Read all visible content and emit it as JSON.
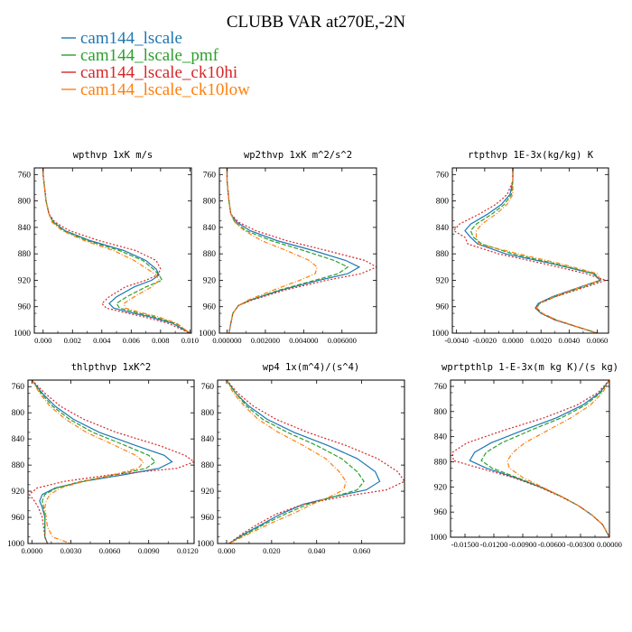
{
  "title": "CLUBB VAR at270E,-2N",
  "legend": [
    {
      "label": "cam144_lscale",
      "color": "#1f77b4"
    },
    {
      "label": "cam144_lscale_pmf",
      "color": "#2ca02c"
    },
    {
      "label": "cam144_lscale_ck10hi",
      "color": "#d62728"
    },
    {
      "label": "cam144_lscale_ck10low",
      "color": "#ff7f0e"
    }
  ],
  "chart_data": [
    {
      "type": "line",
      "title": "wpthvp  1xK m/s",
      "ylim": [
        1000,
        750
      ],
      "yticks": [
        760,
        800,
        840,
        880,
        920,
        960,
        1000
      ],
      "xlim": [
        -0.0006,
        0.0101
      ],
      "xticks": [
        0.0,
        0.002,
        0.004,
        0.006,
        0.008,
        0.01
      ],
      "xtick_labels": [
        "0.000",
        "0.002",
        "0.004",
        "0.006",
        "0.008",
        "0.010"
      ],
      "y": [
        750,
        760,
        780,
        800,
        820,
        832,
        845,
        860,
        875,
        890,
        903,
        912,
        920,
        930,
        945,
        955,
        962,
        968,
        975,
        985,
        1000
      ],
      "series": [
        {
          "name": "cam144_lscale",
          "values": [
            0.0,
            0.0,
            0.0001,
            0.0002,
            0.0004,
            0.0007,
            0.0015,
            0.0032,
            0.0055,
            0.007,
            0.0077,
            0.0079,
            0.0074,
            0.0062,
            0.005,
            0.0045,
            0.0048,
            0.0058,
            0.0072,
            0.0088,
            0.01
          ]
        },
        {
          "name": "cam144_lscale_pmf",
          "values": [
            0.0,
            0.0,
            0.0001,
            0.0002,
            0.0004,
            0.0007,
            0.0014,
            0.003,
            0.0052,
            0.0068,
            0.0075,
            0.0079,
            0.0081,
            0.007,
            0.0057,
            0.005,
            0.0052,
            0.0062,
            0.0075,
            0.009,
            0.01
          ]
        },
        {
          "name": "cam144_lscale_ck10hi",
          "values": [
            0.0,
            0.0,
            0.0001,
            0.0002,
            0.0004,
            0.0008,
            0.0018,
            0.0038,
            0.0063,
            0.0077,
            0.008,
            0.0078,
            0.007,
            0.0056,
            0.0045,
            0.004,
            0.0043,
            0.0054,
            0.0068,
            0.0085,
            0.01
          ]
        },
        {
          "name": "cam144_lscale_ck10low",
          "values": [
            0.0,
            0.0,
            0.0001,
            0.0002,
            0.0004,
            0.0006,
            0.0013,
            0.0028,
            0.0048,
            0.0062,
            0.0071,
            0.0077,
            0.0079,
            0.0074,
            0.0062,
            0.0055,
            0.0056,
            0.0065,
            0.0078,
            0.0091,
            0.01
          ]
        }
      ]
    },
    {
      "type": "line",
      "title": "wp2thvp  1xK m^2/s^2",
      "ylim": [
        1000,
        750
      ],
      "yticks": [
        760,
        800,
        840,
        880,
        920,
        960,
        1000
      ],
      "xlim": [
        -0.0004,
        0.0078
      ],
      "xticks": [
        0.0,
        0.002,
        0.004,
        0.006
      ],
      "xtick_labels": [
        "0.000000",
        "0.002000",
        "0.004000",
        "0.006000"
      ],
      "y": [
        750,
        770,
        800,
        820,
        832,
        845,
        860,
        875,
        890,
        900,
        910,
        920,
        935,
        950,
        958,
        970,
        985,
        1000
      ],
      "series": [
        {
          "name": "cam144_lscale",
          "values": [
            0.0,
            0.0,
            0.0001,
            0.0002,
            0.0005,
            0.0012,
            0.0026,
            0.0045,
            0.0062,
            0.0069,
            0.0063,
            0.0048,
            0.0028,
            0.0012,
            0.0006,
            0.0003,
            0.0002,
            0.0001
          ]
        },
        {
          "name": "cam144_lscale_pmf",
          "values": [
            0.0,
            0.0,
            0.0001,
            0.0002,
            0.0004,
            0.001,
            0.0023,
            0.004,
            0.0056,
            0.0063,
            0.0058,
            0.0046,
            0.0027,
            0.0012,
            0.0006,
            0.0003,
            0.0002,
            0.0001
          ]
        },
        {
          "name": "cam144_lscale_ck10hi",
          "values": [
            0.0,
            0.0,
            0.0001,
            0.0002,
            0.0006,
            0.0015,
            0.0031,
            0.0052,
            0.0072,
            0.0078,
            0.007,
            0.0052,
            0.003,
            0.0013,
            0.0006,
            0.0003,
            0.0002,
            0.0001
          ]
        },
        {
          "name": "cam144_lscale_ck10low",
          "values": [
            0.0,
            0.0,
            0.0001,
            0.0002,
            0.0004,
            0.0009,
            0.0018,
            0.0031,
            0.0043,
            0.0047,
            0.0046,
            0.0038,
            0.0024,
            0.0011,
            0.0006,
            0.0003,
            0.0002,
            0.0001
          ]
        }
      ]
    },
    {
      "type": "line",
      "title": "rtpthvp  1E-3x(kg/kg) K",
      "ylim": [
        1000,
        750
      ],
      "yticks": [
        760,
        800,
        840,
        880,
        920,
        960,
        1000
      ],
      "xlim": [
        -0.0043,
        0.0068
      ],
      "xticks": [
        -0.004,
        -0.002,
        0.0,
        0.002,
        0.004,
        0.006
      ],
      "xtick_labels": [
        "-0.0040",
        "-0.0020",
        "0.0000",
        "0.0020",
        "0.0040",
        "0.0060"
      ],
      "y": [
        750,
        770,
        790,
        805,
        820,
        835,
        845,
        855,
        865,
        880,
        895,
        910,
        920,
        930,
        945,
        955,
        962,
        970,
        980,
        1000
      ],
      "series": [
        {
          "name": "cam144_lscale",
          "values": [
            0.0,
            0.0,
            -0.0002,
            -0.0008,
            -0.0018,
            -0.003,
            -0.0034,
            -0.003,
            -0.0025,
            -0.0005,
            0.0028,
            0.0057,
            0.0062,
            0.0048,
            0.0028,
            0.0018,
            0.0016,
            0.002,
            0.003,
            0.006
          ]
        },
        {
          "name": "cam144_lscale_pmf",
          "values": [
            0.0,
            0.0,
            -0.0001,
            -0.0006,
            -0.0015,
            -0.0026,
            -0.003,
            -0.0028,
            -0.0022,
            0.0,
            0.003,
            0.0058,
            0.0063,
            0.005,
            0.003,
            0.0019,
            0.0017,
            0.0021,
            0.0031,
            0.006
          ]
        },
        {
          "name": "cam144_lscale_ck10hi",
          "values": [
            0.0,
            0.0,
            -0.0004,
            -0.0012,
            -0.0024,
            -0.0038,
            -0.0042,
            -0.0034,
            -0.0032,
            -0.001,
            0.0022,
            0.0052,
            0.0066,
            0.0052,
            0.003,
            0.0019,
            0.0016,
            0.002,
            0.003,
            0.006
          ]
        },
        {
          "name": "cam144_lscale_ck10low",
          "values": [
            0.0,
            0.0,
            0.0,
            -0.0004,
            -0.0012,
            -0.0022,
            -0.0026,
            -0.0026,
            -0.0024,
            0.0004,
            0.0034,
            0.006,
            0.0062,
            0.0048,
            0.0029,
            0.0019,
            0.0017,
            0.0021,
            0.0031,
            0.006
          ]
        }
      ]
    },
    {
      "type": "line",
      "title": "thlpthvp  1xK^2",
      "ylim": [
        1000,
        750
      ],
      "yticks": [
        760,
        800,
        840,
        880,
        920,
        960,
        1000
      ],
      "xlim": [
        -0.0003,
        0.0125
      ],
      "xticks": [
        0.0,
        0.003,
        0.006,
        0.009,
        0.012
      ],
      "xtick_labels": [
        "0.0000",
        "0.0030",
        "0.0060",
        "0.0090",
        "0.0120"
      ],
      "y": [
        750,
        770,
        790,
        810,
        830,
        850,
        865,
        875,
        885,
        895,
        905,
        915,
        925,
        935,
        945,
        960,
        975,
        990,
        1000
      ],
      "series": [
        {
          "name": "cam144_lscale",
          "values": [
            0.0,
            0.0008,
            0.0018,
            0.0032,
            0.0052,
            0.008,
            0.0102,
            0.0108,
            0.0098,
            0.007,
            0.004,
            0.0018,
            0.0008,
            0.0006,
            0.0008,
            0.001,
            0.001,
            0.001,
            0.0012
          ]
        },
        {
          "name": "cam144_lscale_pmf",
          "values": [
            0.0,
            0.0007,
            0.0016,
            0.0029,
            0.0047,
            0.0072,
            0.009,
            0.0095,
            0.0088,
            0.0064,
            0.0038,
            0.0019,
            0.001,
            0.0008,
            0.0009,
            0.001,
            0.001,
            0.001,
            0.0012
          ]
        },
        {
          "name": "cam144_lscale_ck10hi",
          "values": [
            0.0,
            0.001,
            0.0022,
            0.004,
            0.0065,
            0.0098,
            0.0118,
            0.0125,
            0.0112,
            0.006,
            0.0025,
            0.0004,
            -0.0002,
            0.0002,
            0.0005,
            0.0008,
            0.0009,
            0.001,
            0.0012
          ]
        },
        {
          "name": "cam144_lscale_ck10low",
          "values": [
            0.0,
            0.0006,
            0.0014,
            0.0026,
            0.0042,
            0.0064,
            0.008,
            0.0086,
            0.0082,
            0.0062,
            0.004,
            0.0022,
            0.0014,
            0.0011,
            0.001,
            0.0011,
            0.0012,
            0.0016,
            0.003
          ]
        }
      ]
    },
    {
      "type": "line",
      "title": "wp4  1x(m^4)/(s^4)",
      "ylim": [
        1000,
        750
      ],
      "yticks": [
        760,
        800,
        840,
        880,
        920,
        960,
        1000
      ],
      "xlim": [
        -0.004,
        0.079
      ],
      "xticks": [
        0.0,
        0.02,
        0.04,
        0.06
      ],
      "xtick_labels": [
        "0.000",
        "0.020",
        "0.040",
        "0.060"
      ],
      "y": [
        750,
        770,
        790,
        810,
        830,
        850,
        870,
        890,
        905,
        918,
        928,
        940,
        955,
        970,
        985,
        1000
      ],
      "series": [
        {
          "name": "cam144_lscale",
          "values": [
            0.0,
            0.004,
            0.01,
            0.018,
            0.03,
            0.045,
            0.058,
            0.066,
            0.068,
            0.062,
            0.048,
            0.034,
            0.024,
            0.016,
            0.008,
            0.001
          ]
        },
        {
          "name": "cam144_lscale_pmf",
          "values": [
            0.0,
            0.004,
            0.009,
            0.016,
            0.027,
            0.04,
            0.051,
            0.058,
            0.061,
            0.058,
            0.048,
            0.036,
            0.026,
            0.017,
            0.009,
            0.001
          ]
        },
        {
          "name": "cam144_lscale_ck10hi",
          "values": [
            0.0,
            0.005,
            0.012,
            0.022,
            0.036,
            0.053,
            0.067,
            0.076,
            0.079,
            0.071,
            0.052,
            0.034,
            0.022,
            0.014,
            0.007,
            0.001
          ]
        },
        {
          "name": "cam144_lscale_ck10low",
          "values": [
            0.0,
            0.003,
            0.008,
            0.014,
            0.023,
            0.034,
            0.044,
            0.05,
            0.053,
            0.052,
            0.046,
            0.038,
            0.029,
            0.019,
            0.01,
            0.001
          ]
        }
      ]
    },
    {
      "type": "line",
      "title": "wprtpthlp  1-E-3x(m kg K)/(s kg)",
      "ylim": [
        1000,
        750
      ],
      "yticks": [
        760,
        800,
        840,
        880,
        920,
        960,
        1000
      ],
      "xlim": [
        -0.0165,
        0.0
      ],
      "xticks": [
        -0.015,
        -0.012,
        -0.009,
        -0.006,
        -0.003,
        0.0
      ],
      "xtick_labels": [
        "-0.01500",
        "-0.01200",
        "-0.00900",
        "-0.00600",
        "-0.00300",
        "0.00000"
      ],
      "y": [
        750,
        770,
        790,
        810,
        830,
        850,
        865,
        878,
        890,
        905,
        920,
        935,
        950,
        965,
        980,
        1000
      ],
      "series": [
        {
          "name": "cam144_lscale",
          "values": [
            0.0,
            -0.001,
            -0.0028,
            -0.0055,
            -0.009,
            -0.0123,
            -0.014,
            -0.0145,
            -0.0128,
            -0.0098,
            -0.0072,
            -0.005,
            -0.0032,
            -0.0018,
            -0.0007,
            0.0
          ]
        },
        {
          "name": "cam144_lscale_pmf",
          "values": [
            0.0,
            -0.0009,
            -0.0025,
            -0.005,
            -0.0082,
            -0.0112,
            -0.0128,
            -0.0133,
            -0.0122,
            -0.0096,
            -0.0071,
            -0.005,
            -0.0032,
            -0.0018,
            -0.0007,
            0.0
          ]
        },
        {
          "name": "cam144_lscale_ck10hi",
          "values": [
            0.0,
            -0.0012,
            -0.0034,
            -0.0068,
            -0.011,
            -0.0148,
            -0.0163,
            -0.0162,
            -0.0135,
            -0.01,
            -0.0073,
            -0.0051,
            -0.0032,
            -0.0018,
            -0.0007,
            0.0
          ]
        },
        {
          "name": "cam144_lscale_ck10low",
          "values": [
            0.0,
            -0.0007,
            -0.002,
            -0.004,
            -0.0064,
            -0.0088,
            -0.01,
            -0.0106,
            -0.0104,
            -0.009,
            -0.007,
            -0.005,
            -0.0032,
            -0.0018,
            -0.0007,
            0.0
          ]
        }
      ]
    }
  ]
}
